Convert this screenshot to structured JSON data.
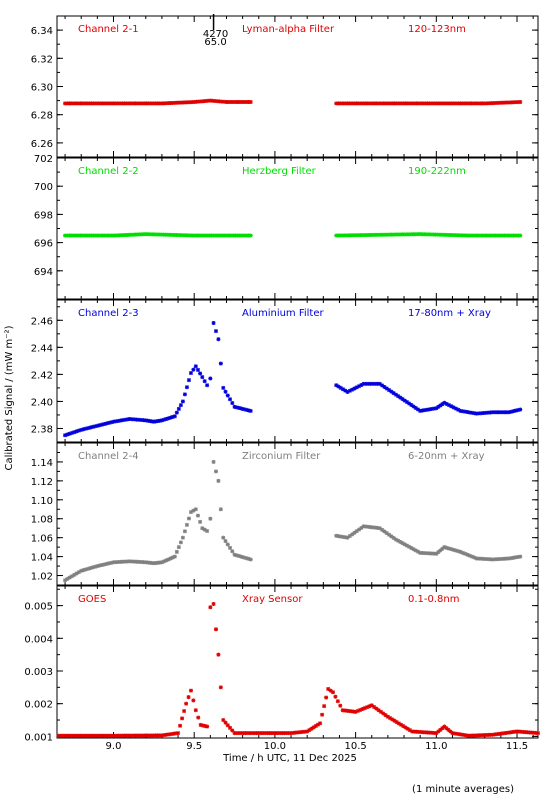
{
  "axis": {
    "xlabel": "Time / h UTC, 11 Dec 2025",
    "ylabel": "Calibrated Signal / (mW m⁻²)",
    "x_ticks": [
      "9.0",
      "9.5",
      "10.0",
      "10.5",
      "11.0",
      "11.5"
    ],
    "xlim": [
      8.65,
      11.63
    ]
  },
  "footnote": "(1 minute averages)",
  "marker": {
    "x": 9.62,
    "label_top": "4270",
    "label_bottom": "65.0"
  },
  "colors": {
    "red": "#e00000",
    "green": "#00dd00",
    "blue": "#0000dd",
    "gray": "#808080"
  },
  "chart_data": [
    {
      "type": "scatter",
      "channel": "Channel 2-1",
      "filter": "Lyman-alpha Filter",
      "band": "120-123nm",
      "color": "#e00000",
      "ylim": [
        6.25,
        6.35
      ],
      "y_ticks": [
        "6.26",
        "6.28",
        "6.30",
        "6.32",
        "6.34"
      ],
      "segments": [
        {
          "x": [
            8.7,
            9.0,
            9.3,
            9.5,
            9.6,
            9.7,
            9.85
          ],
          "y": [
            6.288,
            6.288,
            6.288,
            6.289,
            6.29,
            6.289,
            6.289
          ]
        },
        {
          "x": [
            10.38,
            10.7,
            11.0,
            11.3,
            11.52
          ],
          "y": [
            6.288,
            6.288,
            6.288,
            6.288,
            6.289
          ]
        }
      ]
    },
    {
      "type": "scatter",
      "channel": "Channel 2-2",
      "filter": "Herzberg Filter",
      "band": "190-222nm",
      "color": "#00dd00",
      "ylim": [
        692,
        702
      ],
      "y_ticks": [
        "694",
        "696",
        "698",
        "700",
        "702"
      ],
      "segments": [
        {
          "x": [
            8.7,
            9.0,
            9.2,
            9.5,
            9.85
          ],
          "y": [
            696.5,
            696.5,
            696.6,
            696.5,
            696.5
          ]
        },
        {
          "x": [
            10.38,
            10.9,
            11.2,
            11.52
          ],
          "y": [
            696.5,
            696.6,
            696.5,
            696.5
          ]
        }
      ]
    },
    {
      "type": "scatter",
      "channel": "Channel 2-3",
      "filter": "Aluminium Filter",
      "band": "17-80nm + Xray",
      "color": "#0000dd",
      "ylim": [
        2.37,
        2.475
      ],
      "y_ticks": [
        "2.38",
        "2.40",
        "2.42",
        "2.44",
        "2.46"
      ],
      "segments": [
        {
          "x": [
            8.7,
            8.8,
            8.9,
            9.0,
            9.1,
            9.2,
            9.25,
            9.3,
            9.38,
            9.43,
            9.48,
            9.51,
            9.55,
            9.58,
            9.6,
            9.62,
            9.65,
            9.68,
            9.75,
            9.85
          ],
          "y": [
            2.375,
            2.379,
            2.382,
            2.385,
            2.387,
            2.386,
            2.385,
            2.386,
            2.389,
            2.4,
            2.421,
            2.426,
            2.418,
            2.412,
            2.417,
            2.458,
            2.446,
            2.41,
            2.396,
            2.393
          ]
        },
        {
          "x": [
            10.38,
            10.45,
            10.55,
            10.65,
            10.75,
            10.9,
            11.0,
            11.05,
            11.15,
            11.25,
            11.35,
            11.45,
            11.52
          ],
          "y": [
            2.412,
            2.407,
            2.413,
            2.413,
            2.405,
            2.393,
            2.395,
            2.399,
            2.393,
            2.391,
            2.392,
            2.392,
            2.394
          ]
        }
      ]
    },
    {
      "type": "scatter",
      "channel": "Channel 2-4",
      "filter": "Zirconium Filter",
      "band": "6-20nm + Xray",
      "color": "#808080",
      "ylim": [
        1.01,
        1.16
      ],
      "y_ticks": [
        "1.02",
        "1.04",
        "1.06",
        "1.08",
        "1.10",
        "1.12",
        "1.14"
      ],
      "segments": [
        {
          "x": [
            8.7,
            8.8,
            8.9,
            9.0,
            9.1,
            9.2,
            9.25,
            9.3,
            9.38,
            9.43,
            9.48,
            9.51,
            9.55,
            9.58,
            9.6,
            9.62,
            9.65,
            9.68,
            9.75,
            9.85
          ],
          "y": [
            1.015,
            1.025,
            1.03,
            1.034,
            1.035,
            1.034,
            1.033,
            1.034,
            1.04,
            1.06,
            1.087,
            1.09,
            1.07,
            1.067,
            1.08,
            1.14,
            1.12,
            1.06,
            1.042,
            1.037
          ]
        },
        {
          "x": [
            10.38,
            10.45,
            10.55,
            10.65,
            10.75,
            10.9,
            11.0,
            11.05,
            11.15,
            11.25,
            11.35,
            11.45,
            11.52
          ],
          "y": [
            1.062,
            1.06,
            1.072,
            1.07,
            1.058,
            1.044,
            1.043,
            1.05,
            1.045,
            1.038,
            1.037,
            1.038,
            1.04
          ]
        }
      ]
    },
    {
      "type": "scatter",
      "channel": "GOES",
      "filter": "Xray Sensor",
      "band": "0.1-0.8nm",
      "color": "#e00000",
      "ylim": [
        0.00095,
        0.0056
      ],
      "y_ticks": [
        "0.001",
        "0.002",
        "0.003",
        "0.004",
        "0.005"
      ],
      "segments": [
        {
          "x": [
            8.66,
            9.0,
            9.3,
            9.4,
            9.45,
            9.48,
            9.51,
            9.54,
            9.58,
            9.6,
            9.62,
            9.65,
            9.68,
            9.75,
            9.9,
            10.1,
            10.2,
            10.28,
            10.33,
            10.36,
            10.42,
            10.5,
            10.6,
            10.7,
            10.85,
            11.0,
            11.05,
            11.1,
            11.2,
            11.35,
            11.5,
            11.63
          ],
          "y": [
            0.00102,
            0.00102,
            0.00103,
            0.0011,
            0.002,
            0.0024,
            0.0018,
            0.00135,
            0.0013,
            0.00495,
            0.00505,
            0.0035,
            0.0015,
            0.0011,
            0.0011,
            0.0011,
            0.00115,
            0.0014,
            0.00245,
            0.00235,
            0.0018,
            0.00175,
            0.00195,
            0.0016,
            0.00115,
            0.0011,
            0.0013,
            0.0011,
            0.00102,
            0.00105,
            0.00115,
            0.0011
          ]
        }
      ]
    }
  ]
}
